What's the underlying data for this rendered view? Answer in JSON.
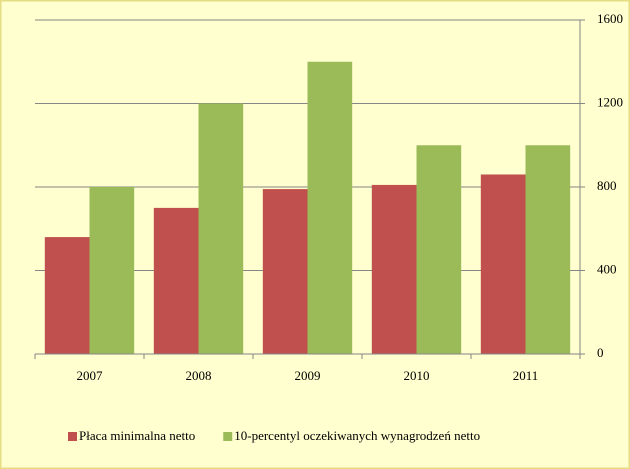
{
  "chart_data": {
    "type": "bar",
    "categories": [
      "2007",
      "2008",
      "2009",
      "2010",
      "2011"
    ],
    "series": [
      {
        "name": "Płaca minimalna netto",
        "color": "#c0504d",
        "values": [
          560,
          700,
          790,
          810,
          860
        ]
      },
      {
        "name": "10-percentyl oczekiwanych wynagrodzeń netto",
        "color": "#9bbb59",
        "values": [
          800,
          1200,
          1400,
          1000,
          1000
        ]
      }
    ],
    "ylim": [
      0,
      1600
    ],
    "yticks": [
      0,
      400,
      800,
      1200,
      1600
    ],
    "grid": true,
    "legend": "bottom"
  }
}
